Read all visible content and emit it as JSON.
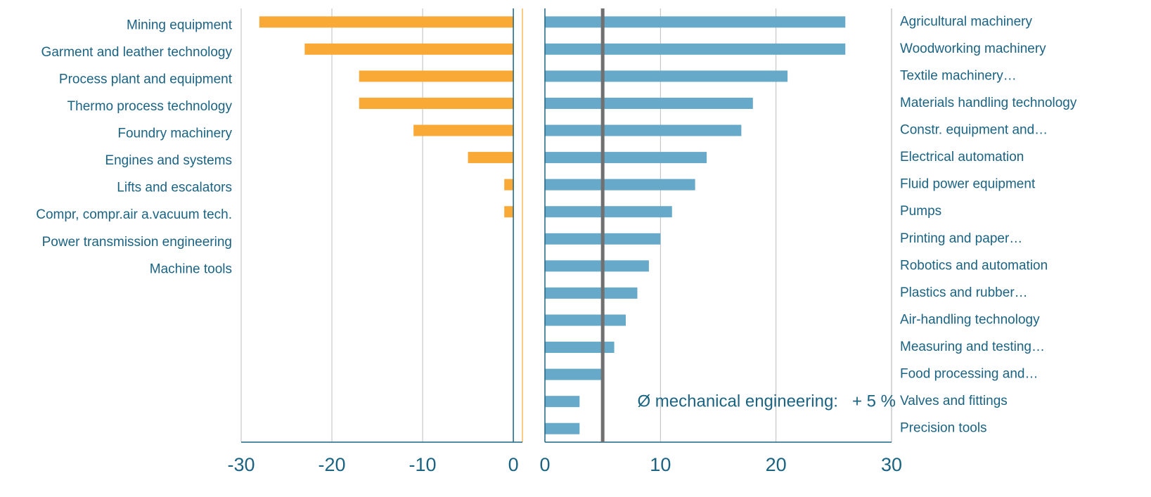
{
  "chart_data": [
    {
      "type": "barh",
      "categories": [
        "Mining equipment",
        "Garment and leather technology",
        "Process plant and equipment",
        "Thermo process technology",
        "Foundry machinery",
        "Engines and systems",
        "Lifts and escalators",
        "Compr, compr.air a.vacuum tech.",
        "Power transmission engineering",
        "Machine tools"
      ],
      "values": [
        -28,
        -23,
        -17,
        -17,
        -11,
        -5,
        -1,
        -1,
        0,
        0
      ],
      "color": "#f9a935",
      "xlim": [
        -30,
        1
      ],
      "xticks": [
        -30,
        -20,
        -10,
        0
      ],
      "grid": true
    },
    {
      "type": "barh",
      "categories": [
        "Agricultural machinery",
        "Woodworking machinery",
        "Textile machinery…",
        "Materials handling technology",
        "Constr. equipment and…",
        "Electrical automation",
        "Fluid power equipment",
        "Pumps",
        "Printing and paper…",
        "Robotics and automation",
        "Plastics and rubber…",
        "Air-handling technology",
        "Measuring and testing…",
        "Food processing and…",
        "Valves and fittings",
        "Precision tools"
      ],
      "values": [
        26,
        26,
        21,
        18,
        17,
        14,
        13,
        11,
        10,
        9,
        8,
        7,
        6,
        5,
        3,
        3
      ],
      "color": "#67a9c9",
      "xlim": [
        0,
        30
      ],
      "xticks": [
        0,
        10,
        20,
        30
      ],
      "grid": true,
      "average": 5,
      "annotation": "Ø mechanical engineering:   + 5 %"
    }
  ]
}
